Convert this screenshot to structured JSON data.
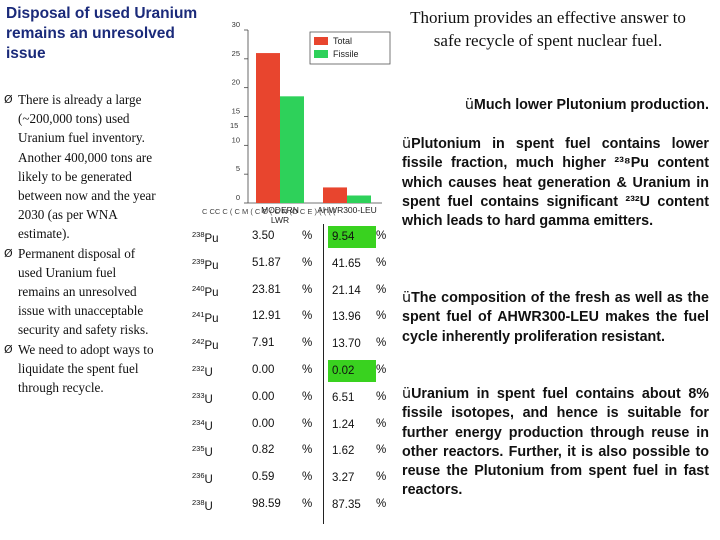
{
  "left": {
    "title": "Disposal of used Uranium remains an unresolved issue",
    "bullets": [
      "There is already a large (~200,000 tons) used Uranium fuel inventory. Another 400,000 tons are likely to be generated between now and the year 2030 (as per WNA estimate).",
      "Permanent disposal of used Uranium fuel remains an unresolved issue with unacceptable security and safety risks.",
      "We need to adopt ways to liquidate the spent fuel through recycle."
    ],
    "arrow_glyph": "Ø"
  },
  "right": {
    "intro": "Thorium provides an effective answer to safe recycle of spent nuclear fuel.",
    "tick_glyph": "ü",
    "bullets": [
      "Much lower Plutonium production.",
      "Plutonium in spent fuel contains lower fissile fraction, much higher ²³⁸Pu content which causes heat generation & Uranium in spent fuel contains significant ²³²U content which leads to hard gamma emitters.",
      "The composition of the fresh as well as the spent fuel of AHWR300-LEU makes the fuel cycle inherently proliferation resistant.",
      "Uranium in spent fuel contains about 8% fissile isotopes, and hence is suitable for further energy production through reuse in other reactors. Further, it is also possible to reuse the Plutonium from spent fuel in fast reactors."
    ]
  },
  "chart_data": {
    "type": "bar",
    "categories": [
      "MODERN LWR",
      "AHWR300-LEU"
    ],
    "series": [
      {
        "name": "Total",
        "values": [
          26,
          2.7
        ],
        "color": "#e8452e"
      },
      {
        "name": "Fissile",
        "values": [
          18.5,
          1.3
        ],
        "color": "#2ed15a"
      }
    ],
    "ylim": [
      0,
      30
    ],
    "yticks": [
      "0",
      "5",
      "10",
      "15",
      "20",
      "25",
      "30"
    ],
    "legend": "top-right",
    "obscured_axis_text": "C CC C ( C M ( C C ( C N (O C E ) ( ( ( (",
    "cut_tick_label": "15"
  },
  "table": {
    "rows": [
      {
        "iso_mass": "238",
        "iso_sym": "Pu",
        "lwr": "3.50",
        "pct": "%",
        "ahwr": "9.54",
        "pct2": "%",
        "highlight": true
      },
      {
        "iso_mass": "239",
        "iso_sym": "Pu",
        "lwr": "51.87",
        "pct": "%",
        "ahwr": "41.65",
        "pct2": "%",
        "highlight": false
      },
      {
        "iso_mass": "240",
        "iso_sym": "Pu",
        "lwr": "23.81",
        "pct": "%",
        "ahwr": "21.14",
        "pct2": "%",
        "highlight": false
      },
      {
        "iso_mass": "241",
        "iso_sym": "Pu",
        "lwr": "12.91",
        "pct": "%",
        "ahwr": "13.96",
        "pct2": "%",
        "highlight": false
      },
      {
        "iso_mass": "242",
        "iso_sym": "Pu",
        "lwr": "7.91",
        "pct": "%",
        "ahwr": "13.70",
        "pct2": "%",
        "highlight": false
      },
      {
        "iso_mass": "232",
        "iso_sym": "U",
        "lwr": "0.00",
        "pct": "%",
        "ahwr": "0.02",
        "pct2": "%",
        "highlight": true
      },
      {
        "iso_mass": "233",
        "iso_sym": "U",
        "lwr": "0.00",
        "pct": "%",
        "ahwr": "6.51",
        "pct2": "%",
        "highlight": false
      },
      {
        "iso_mass": "234",
        "iso_sym": "U",
        "lwr": "0.00",
        "pct": "%",
        "ahwr": "1.24",
        "pct2": "%",
        "highlight": false
      },
      {
        "iso_mass": "235",
        "iso_sym": "U",
        "lwr": "0.82",
        "pct": "%",
        "ahwr": "1.62",
        "pct2": "%",
        "highlight": false
      },
      {
        "iso_mass": "236",
        "iso_sym": "U",
        "lwr": "0.59",
        "pct": "%",
        "ahwr": "3.27",
        "pct2": "%",
        "highlight": false
      },
      {
        "iso_mass": "238",
        "iso_sym": "U",
        "lwr": "98.59",
        "pct": "%",
        "ahwr": "87.35",
        "pct2": "%",
        "highlight": false
      }
    ]
  }
}
